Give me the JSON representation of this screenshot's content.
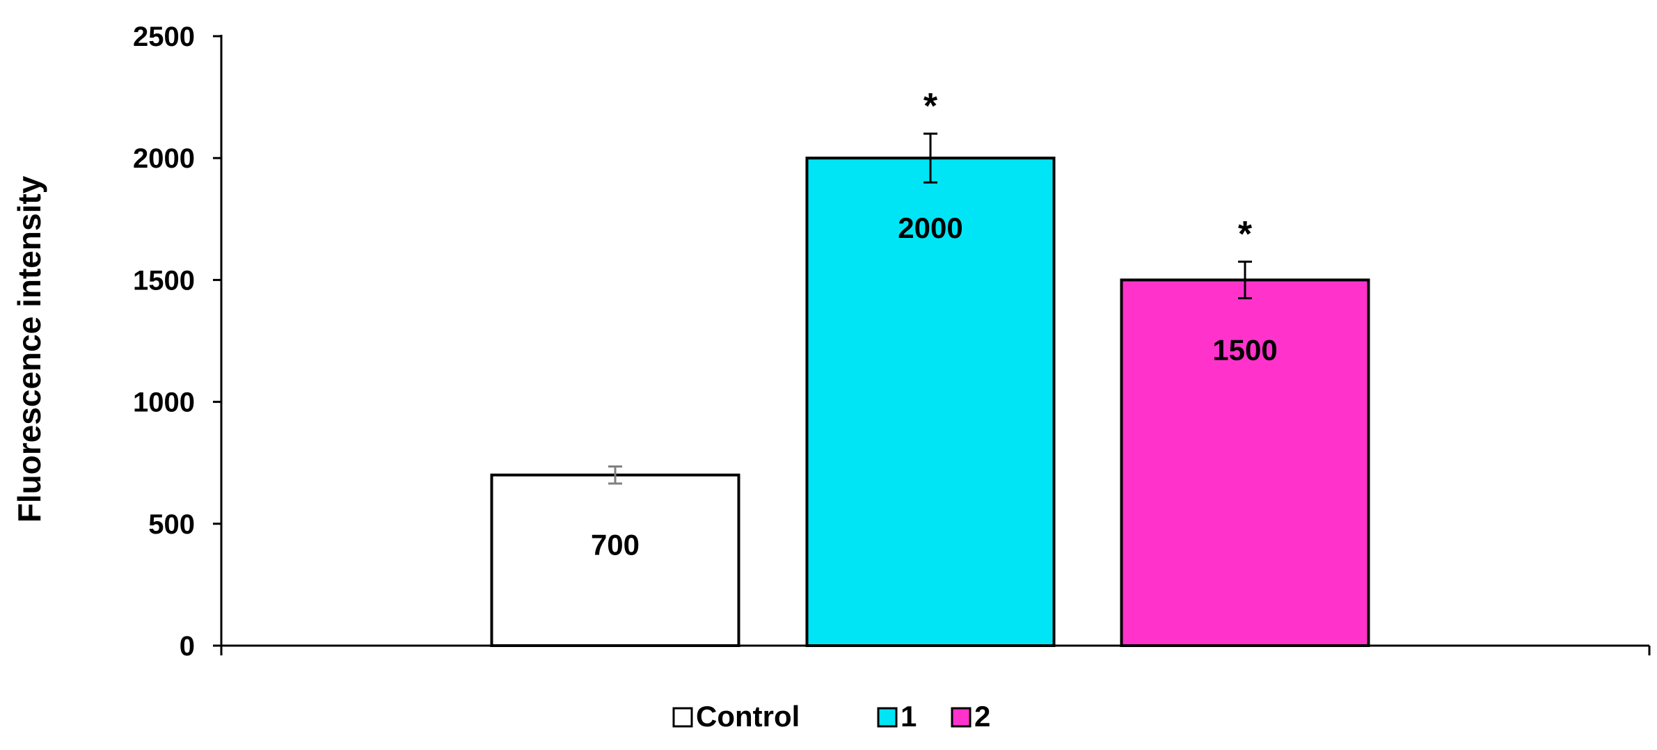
{
  "chart_data": {
    "type": "bar",
    "ylabel": "Fluorescence intensity",
    "xlabel": "",
    "ylim": [
      0,
      2500
    ],
    "yticks": [
      0,
      500,
      1000,
      1500,
      2000,
      2500
    ],
    "grid": false,
    "legend_position": "bottom-center",
    "series": [
      {
        "name": "Control",
        "value": 700,
        "error": 35,
        "color": "#ffffff",
        "error_color": "#808080",
        "label": "700",
        "significance": ""
      },
      {
        "name": "1",
        "value": 2000,
        "error": 100,
        "color": "#00e5f5",
        "error_color": "#000000",
        "label": "2000",
        "significance": "*"
      },
      {
        "name": "2",
        "value": 1500,
        "error": 75,
        "color": "#ff33cc",
        "error_color": "#000000",
        "label": "1500",
        "significance": "*"
      }
    ]
  }
}
